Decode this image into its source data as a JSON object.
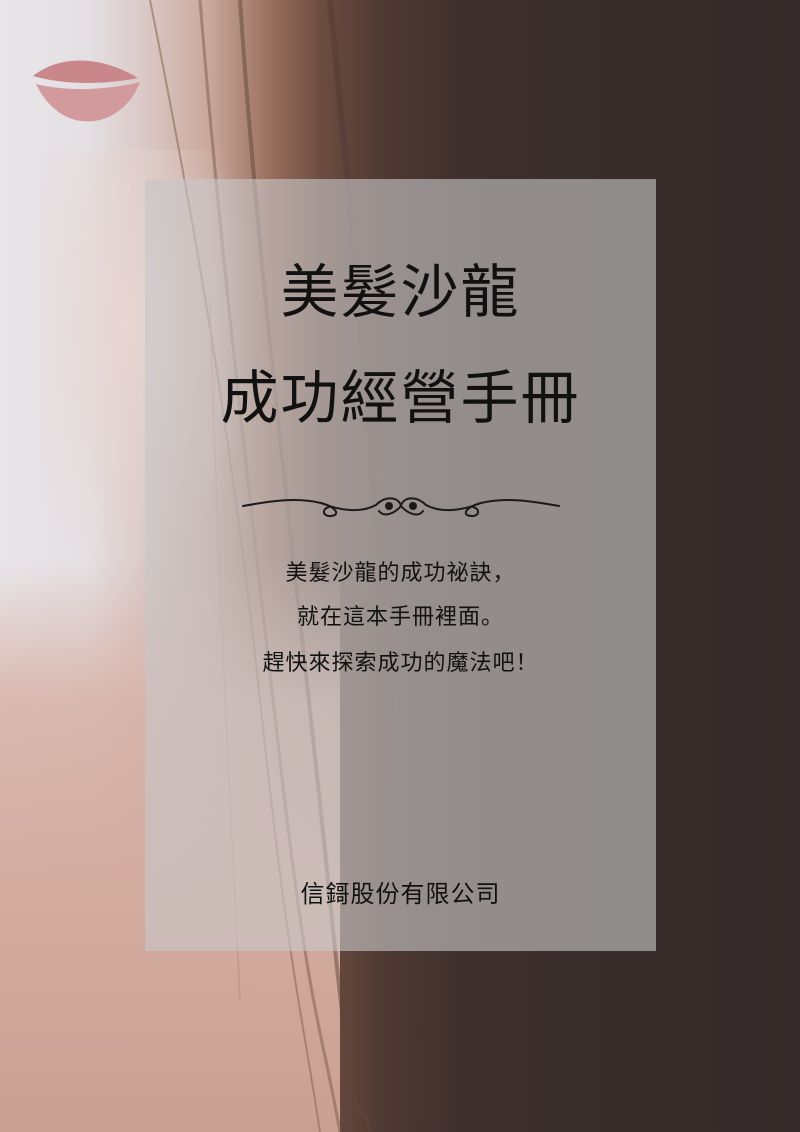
{
  "cover": {
    "title_line1": "美髮沙龍",
    "title_line2": "成功經營手冊",
    "tagline_line1": "美髮沙龍的成功祕訣，",
    "tagline_line2": "就在這本手冊裡面。",
    "tagline_line3": "趕快來探索成功的魔法吧！",
    "company": "信鎶股份有限公司"
  },
  "colors": {
    "panel": "#c8c6c8",
    "text": "#111111",
    "hair": "#3a2e2c",
    "skin": "#d3ab9f"
  }
}
